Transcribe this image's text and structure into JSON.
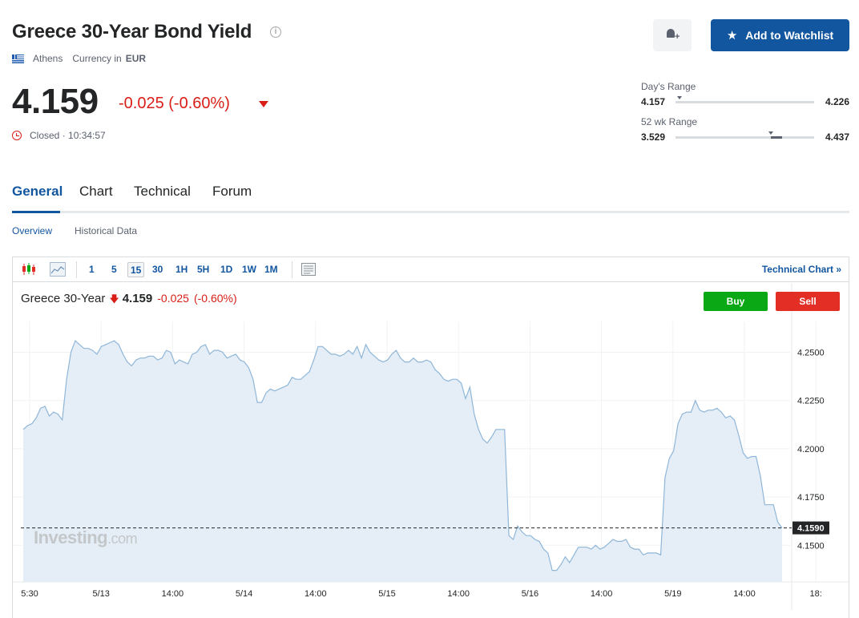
{
  "header": {
    "title": "Greece 30-Year Bond Yield",
    "location": "Athens",
    "currency_label": "Currency in",
    "currency": "EUR",
    "price": "4.159",
    "change": "-0.025 (-0.60%)",
    "status": "Closed · 10:34:57"
  },
  "actions": {
    "watchlist_label": "Add to Watchlist"
  },
  "ranges": {
    "day": {
      "label": "Day's Range",
      "low": "4.157",
      "high": "4.226",
      "current_fraction": 0.03
    },
    "week52": {
      "label": "52 wk Range",
      "low": "3.529",
      "high": "4.437",
      "current_fraction": 0.69
    }
  },
  "tabs": [
    "General",
    "Chart",
    "Technical",
    "Forum"
  ],
  "subtabs": [
    "Overview",
    "Historical Data"
  ],
  "toolbar": {
    "timeframes": [
      "1",
      "5",
      "15",
      "30",
      "1H",
      "5H",
      "1D",
      "1W",
      "1M"
    ],
    "active_timeframe": "15",
    "technical_link": "Technical Chart »"
  },
  "chart_legend": {
    "name": "Greece 30-Year",
    "value": "4.159",
    "change": "-0.025",
    "change_pct": "(-0.60%)",
    "buy": "Buy",
    "sell": "Sell"
  },
  "watermark": {
    "brand": "Investing",
    "suffix": ".com"
  },
  "colors": {
    "brand_blue": "#1256a0",
    "negative": "#d91e18",
    "buy": "#0aa815",
    "sell": "#e32e26",
    "line": "#8fb6d8",
    "area": "#e5eef6"
  },
  "chart_data": {
    "type": "area",
    "title": "",
    "xlabel": "",
    "ylabel": "",
    "ylim": [
      4.131,
      4.266
    ],
    "yticks": [
      4.15,
      4.175,
      4.2,
      4.225,
      4.25
    ],
    "ytick_labels": [
      "4.1500",
      "4.1750",
      "4.2000",
      "4.2250",
      "4.2500"
    ],
    "last_value": 4.159,
    "last_value_label": "4.1590",
    "x_tick_labels": [
      "5:30",
      "5/13",
      "14:00",
      "5/14",
      "14:00",
      "5/15",
      "14:00",
      "5/16",
      "14:00",
      "5/19",
      "14:00",
      "18:"
    ],
    "grid": true,
    "series": [
      {
        "values": [
          4.21,
          4.212,
          4.213,
          4.216,
          4.221,
          4.222,
          4.217,
          4.219,
          4.218,
          4.215,
          4.236,
          4.25,
          4.256,
          4.254,
          4.252,
          4.252,
          4.251,
          4.249,
          4.253,
          4.254,
          4.255,
          4.256,
          4.254,
          4.249,
          4.245,
          4.243,
          4.246,
          4.247,
          4.247,
          4.248,
          4.248,
          4.246,
          4.247,
          4.251,
          4.25,
          4.244,
          4.246,
          4.245,
          4.244,
          4.249,
          4.25,
          4.253,
          4.254,
          4.249,
          4.251,
          4.251,
          4.25,
          4.247,
          4.248,
          4.249,
          4.246,
          4.245,
          4.242,
          4.236,
          4.224,
          4.224,
          4.229,
          4.231,
          4.23,
          4.231,
          4.232,
          4.233,
          4.237,
          4.236,
          4.236,
          4.238,
          4.24,
          4.246,
          4.253,
          4.253,
          4.251,
          4.249,
          4.249,
          4.248,
          4.249,
          4.251,
          4.249,
          4.253,
          4.247,
          4.254,
          4.25,
          4.248,
          4.246,
          4.245,
          4.246,
          4.249,
          4.251,
          4.247,
          4.245,
          4.245,
          4.247,
          4.245,
          4.245,
          4.246,
          4.245,
          4.241,
          4.239,
          4.236,
          4.235,
          4.236,
          4.236,
          4.234,
          4.226,
          4.232,
          4.218,
          4.21,
          4.205,
          4.203,
          4.206,
          4.21,
          4.21,
          4.21,
          4.155,
          4.153,
          4.16,
          4.157,
          4.155,
          4.155,
          4.153,
          4.152,
          4.148,
          4.146,
          4.137,
          4.137,
          4.14,
          4.144,
          4.141,
          4.145,
          4.149,
          4.149,
          4.149,
          4.148,
          4.15,
          4.148,
          4.149,
          4.151,
          4.153,
          4.152,
          4.152,
          4.153,
          4.149,
          4.148,
          4.148,
          4.145,
          4.146,
          4.146,
          4.146,
          4.145,
          4.185,
          4.195,
          4.199,
          4.213,
          4.218,
          4.219,
          4.219,
          4.225,
          4.22,
          4.219,
          4.22,
          4.22,
          4.221,
          4.219,
          4.216,
          4.217,
          4.215,
          4.207,
          4.198,
          4.195,
          4.196,
          4.196,
          4.186,
          4.171,
          4.171,
          4.171,
          4.162,
          4.159
        ]
      }
    ]
  }
}
